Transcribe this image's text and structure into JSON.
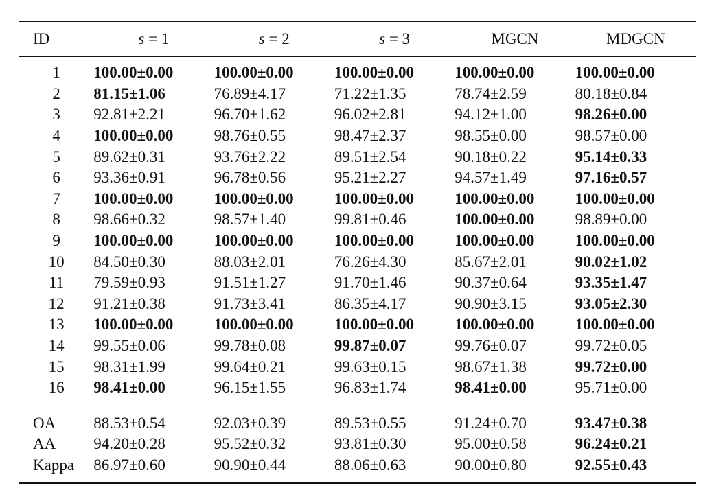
{
  "table": {
    "columns": [
      "ID",
      "s = 1",
      "s = 2",
      "s = 3",
      "MGCN",
      "MDGCN"
    ],
    "class_rows": [
      {
        "id": "1",
        "values": [
          "100.00±0.00",
          "100.00±0.00",
          "100.00±0.00",
          "100.00±0.00",
          "100.00±0.00"
        ],
        "bold": [
          true,
          true,
          true,
          true,
          true
        ]
      },
      {
        "id": "2",
        "values": [
          "81.15±1.06",
          "76.89±4.17",
          "71.22±1.35",
          "78.74±2.59",
          "80.18±0.84"
        ],
        "bold": [
          true,
          false,
          false,
          false,
          false
        ]
      },
      {
        "id": "3",
        "values": [
          "92.81±2.21",
          "96.70±1.62",
          "96.02±2.81",
          "94.12±1.00",
          "98.26±0.00"
        ],
        "bold": [
          false,
          false,
          false,
          false,
          true
        ]
      },
      {
        "id": "4",
        "values": [
          "100.00±0.00",
          "98.76±0.55",
          "98.47±2.37",
          "98.55±0.00",
          "98.57±0.00"
        ],
        "bold": [
          true,
          false,
          false,
          false,
          false
        ]
      },
      {
        "id": "5",
        "values": [
          "89.62±0.31",
          "93.76±2.22",
          "89.51±2.54",
          "90.18±0.22",
          "95.14±0.33"
        ],
        "bold": [
          false,
          false,
          false,
          false,
          true
        ]
      },
      {
        "id": "6",
        "values": [
          "93.36±0.91",
          "96.78±0.56",
          "95.21±2.27",
          "94.57±1.49",
          "97.16±0.57"
        ],
        "bold": [
          false,
          false,
          false,
          false,
          true
        ]
      },
      {
        "id": "7",
        "values": [
          "100.00±0.00",
          "100.00±0.00",
          "100.00±0.00",
          "100.00±0.00",
          "100.00±0.00"
        ],
        "bold": [
          true,
          true,
          true,
          true,
          true
        ]
      },
      {
        "id": "8",
        "values": [
          "98.66±0.32",
          "98.57±1.40",
          "99.81±0.46",
          "100.00±0.00",
          "98.89±0.00"
        ],
        "bold": [
          false,
          false,
          false,
          true,
          false
        ]
      },
      {
        "id": "9",
        "values": [
          "100.00±0.00",
          "100.00±0.00",
          "100.00±0.00",
          "100.00±0.00",
          "100.00±0.00"
        ],
        "bold": [
          true,
          true,
          true,
          true,
          true
        ]
      },
      {
        "id": "10",
        "values": [
          "84.50±0.30",
          "88.03±2.01",
          "76.26±4.30",
          "85.67±2.01",
          "90.02±1.02"
        ],
        "bold": [
          false,
          false,
          false,
          false,
          true
        ]
      },
      {
        "id": "11",
        "values": [
          "79.59±0.93",
          "91.51±1.27",
          "91.70±1.46",
          "90.37±0.64",
          "93.35±1.47"
        ],
        "bold": [
          false,
          false,
          false,
          false,
          true
        ]
      },
      {
        "id": "12",
        "values": [
          "91.21±0.38",
          "91.73±3.41",
          "86.35±4.17",
          "90.90±3.15",
          "93.05±2.30"
        ],
        "bold": [
          false,
          false,
          false,
          false,
          true
        ]
      },
      {
        "id": "13",
        "values": [
          "100.00±0.00",
          "100.00±0.00",
          "100.00±0.00",
          "100.00±0.00",
          "100.00±0.00"
        ],
        "bold": [
          true,
          true,
          true,
          true,
          true
        ]
      },
      {
        "id": "14",
        "values": [
          "99.55±0.06",
          "99.78±0.08",
          "99.87±0.07",
          "99.76±0.07",
          "99.72±0.05"
        ],
        "bold": [
          false,
          false,
          true,
          false,
          false
        ]
      },
      {
        "id": "15",
        "values": [
          "98.31±1.99",
          "99.64±0.21",
          "99.63±0.15",
          "98.67±1.38",
          "99.72±0.00"
        ],
        "bold": [
          false,
          false,
          false,
          false,
          true
        ]
      },
      {
        "id": "16",
        "values": [
          "98.41±0.00",
          "96.15±1.55",
          "96.83±1.74",
          "98.41±0.00",
          "95.71±0.00"
        ],
        "bold": [
          true,
          false,
          false,
          true,
          false
        ]
      }
    ],
    "metric_rows": [
      {
        "id": "OA",
        "values": [
          "88.53±0.54",
          "92.03±0.39",
          "89.53±0.55",
          "91.24±0.70",
          "93.47±0.38"
        ],
        "bold": [
          false,
          false,
          false,
          false,
          true
        ]
      },
      {
        "id": "AA",
        "values": [
          "94.20±0.28",
          "95.52±0.32",
          "93.81±0.30",
          "95.00±0.58",
          "96.24±0.21"
        ],
        "bold": [
          false,
          false,
          false,
          false,
          true
        ]
      },
      {
        "id": "Kappa",
        "values": [
          "86.97±0.60",
          "90.90±0.44",
          "88.06±0.63",
          "90.00±0.80",
          "92.55±0.43"
        ],
        "bold": [
          false,
          false,
          false,
          false,
          true
        ]
      }
    ]
  }
}
